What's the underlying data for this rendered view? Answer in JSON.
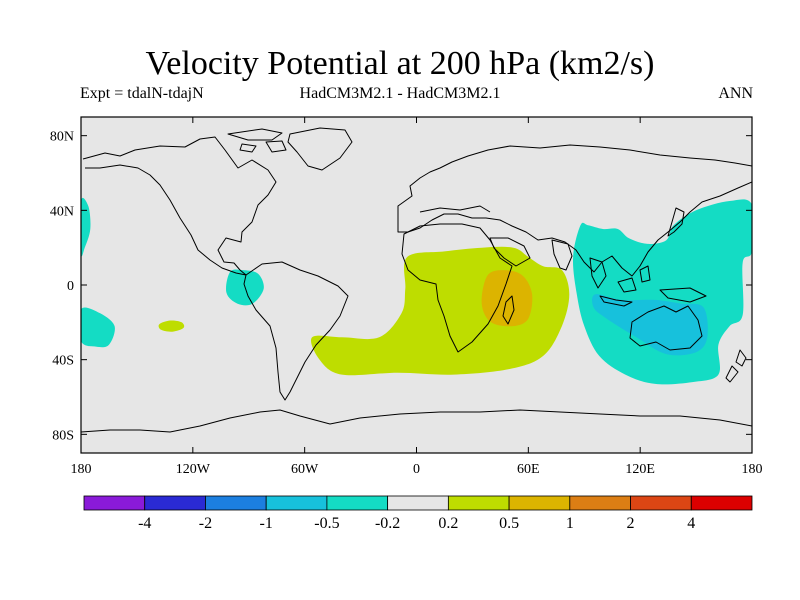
{
  "chart_data": {
    "type": "heatmap",
    "title": "Velocity Potential at 200 hPa (km2/s)",
    "subtitle_left": "Expt = tdalN-tdajN",
    "subtitle_center": "HadCM3M2.1 - HadCM3M2.1",
    "subtitle_right": "ANN",
    "x_range": [
      -180,
      180
    ],
    "y_range": [
      -90,
      90
    ],
    "x_ticks": [
      {
        "value": -180,
        "label": "180"
      },
      {
        "value": -120,
        "label": "120W"
      },
      {
        "value": -60,
        "label": "60W"
      },
      {
        "value": 0,
        "label": "0"
      },
      {
        "value": 60,
        "label": "60E"
      },
      {
        "value": 120,
        "label": "120E"
      },
      {
        "value": 180,
        "label": "180"
      }
    ],
    "y_ticks": [
      {
        "value": 80,
        "label": "80N"
      },
      {
        "value": 40,
        "label": "40N"
      },
      {
        "value": 0,
        "label": "0"
      },
      {
        "value": -40,
        "label": "40S"
      },
      {
        "value": -80,
        "label": "80S"
      }
    ],
    "colorbar": {
      "colors": [
        "#8a1ad9",
        "#2a2ad4",
        "#1c7fe0",
        "#17c1dc",
        "#14dcc4",
        "#e6e6e6",
        "#bedd00",
        "#dcb400",
        "#dc7e14",
        "#dc4614",
        "#dc0000"
      ],
      "labels": [
        "-4",
        "-2",
        "-1",
        "-0.5",
        "-0.2",
        "0.2",
        "0.5",
        "1",
        "2",
        "4"
      ]
    },
    "background_color": "#e6e6e6",
    "regions": [
      {
        "name": "south-atlantic-africa-positive",
        "level": "0.2 to 0.5",
        "color": "#bedd00",
        "points": [
          [
            -5,
            15
          ],
          [
            15,
            18
          ],
          [
            35,
            20
          ],
          [
            52,
            20
          ],
          [
            60,
            15
          ],
          [
            68,
            10
          ],
          [
            78,
            8
          ],
          [
            82,
            -5
          ],
          [
            78,
            -22
          ],
          [
            68,
            -38
          ],
          [
            50,
            -45
          ],
          [
            20,
            -48
          ],
          [
            -10,
            -47
          ],
          [
            -40,
            -48
          ],
          [
            -52,
            -40
          ],
          [
            -56,
            -28
          ],
          [
            -40,
            -28
          ],
          [
            -20,
            -28
          ],
          [
            -8,
            -15
          ],
          [
            -6,
            -2
          ]
        ]
      },
      {
        "name": "indian-ocean-maximum",
        "level": "0.5 to 1",
        "color": "#dcb400",
        "points": [
          [
            38,
            5
          ],
          [
            47,
            8
          ],
          [
            57,
            5
          ],
          [
            62,
            -5
          ],
          [
            60,
            -18
          ],
          [
            52,
            -22
          ],
          [
            40,
            -20
          ],
          [
            35,
            -10
          ]
        ]
      },
      {
        "name": "south-pacific-small-positive",
        "level": "0.2 to 0.5",
        "color": "#bedd00",
        "points": [
          [
            -138,
            -21
          ],
          [
            -132,
            -19
          ],
          [
            -126,
            -20
          ],
          [
            -125,
            -23
          ],
          [
            -131,
            -25
          ],
          [
            -137,
            -24
          ]
        ]
      },
      {
        "name": "warm-pool-negative",
        "level": "-0.5 to -0.2",
        "color": "#14dcc4",
        "points": [
          [
            88,
            32
          ],
          [
            92,
            32
          ],
          [
            100,
            30
          ],
          [
            108,
            30
          ],
          [
            114,
            25
          ],
          [
            124,
            22
          ],
          [
            134,
            24
          ],
          [
            138,
            32
          ],
          [
            150,
            40
          ],
          [
            168,
            45
          ],
          [
            180,
            43
          ],
          [
            180,
            18
          ],
          [
            175,
            12
          ],
          [
            175,
            -16
          ],
          [
            168,
            -22
          ],
          [
            162,
            -32
          ],
          [
            162,
            -48
          ],
          [
            148,
            -52
          ],
          [
            128,
            -53
          ],
          [
            112,
            -48
          ],
          [
            98,
            -38
          ],
          [
            90,
            -22
          ],
          [
            86,
            -5
          ],
          [
            84,
            15
          ]
        ]
      },
      {
        "name": "indonesia-australia-negative",
        "level": "-1 to -0.5",
        "color": "#17c1dc",
        "points": [
          [
            96,
            -5
          ],
          [
            110,
            -8
          ],
          [
            128,
            -8
          ],
          [
            142,
            -10
          ],
          [
            154,
            -12
          ],
          [
            156,
            -28
          ],
          [
            150,
            -36
          ],
          [
            134,
            -37
          ],
          [
            118,
            -28
          ],
          [
            102,
            -18
          ],
          [
            95,
            -12
          ]
        ]
      },
      {
        "name": "west-edge-negative",
        "level": "-0.5 to -0.2",
        "color": "#14dcc4",
        "points": [
          [
            -180,
            45
          ],
          [
            -176,
            42
          ],
          [
            -175,
            30
          ],
          [
            -178,
            20
          ],
          [
            -180,
            17
          ]
        ]
      },
      {
        "name": "southwest-edge-negative",
        "level": "-0.5 to -0.2",
        "color": "#14dcc4",
        "points": [
          [
            -180,
            -13
          ],
          [
            -170,
            -15
          ],
          [
            -162,
            -22
          ],
          [
            -165,
            -32
          ],
          [
            -172,
            -33
          ],
          [
            -180,
            -30
          ]
        ]
      },
      {
        "name": "east-pacific-negative",
        "level": "-0.5 to -0.2",
        "color": "#14dcc4",
        "points": [
          [
            -100,
            7
          ],
          [
            -93,
            8
          ],
          [
            -85,
            6
          ],
          [
            -82,
            -2
          ],
          [
            -88,
            -10
          ],
          [
            -96,
            -10
          ],
          [
            -102,
            -4
          ]
        ]
      }
    ]
  }
}
